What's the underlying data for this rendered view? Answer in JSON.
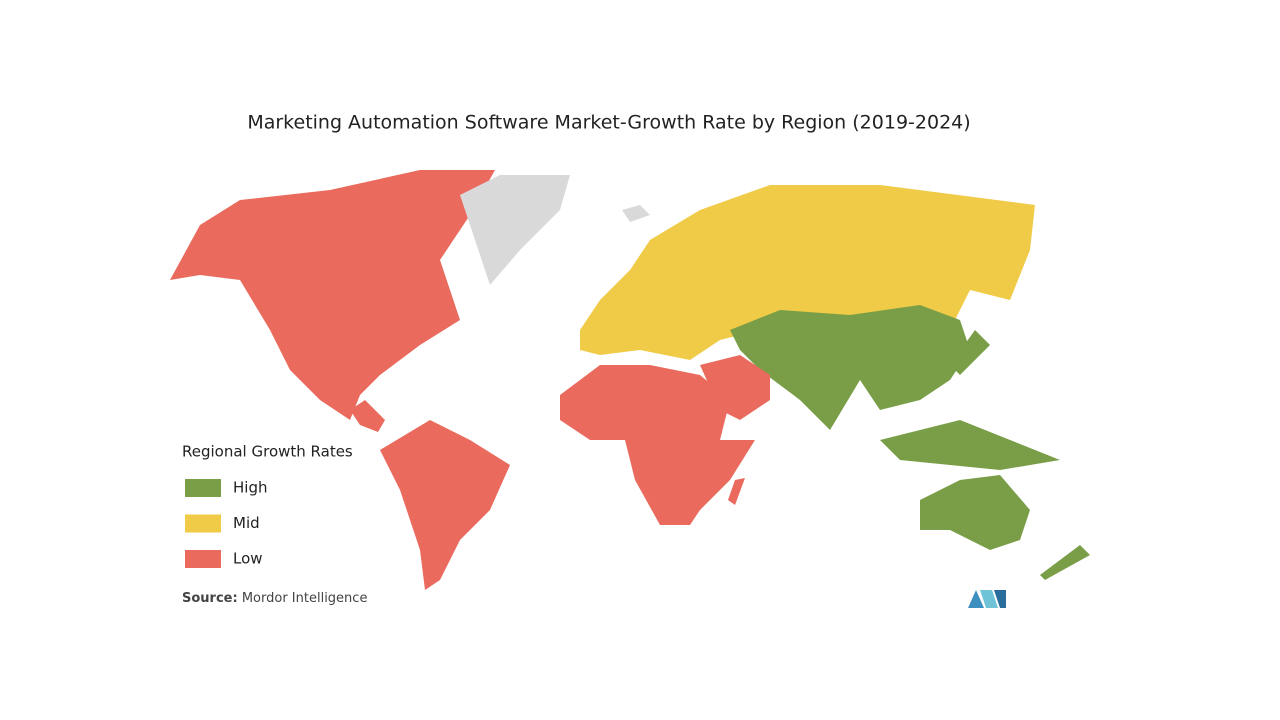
{
  "title": "Marketing Automation Software Market-Growth Rate by Region (2019-2024)",
  "legend": {
    "title": "Regional Growth Rates",
    "items": [
      {
        "label": "High",
        "color": "#7a9e47"
      },
      {
        "label": "Mid",
        "color": "#f0cb47"
      },
      {
        "label": "Low",
        "color": "#ea6b5e"
      }
    ]
  },
  "source": {
    "label": "Source:",
    "text": "Mordor Intelligence"
  },
  "no_data_color": "#d9d9d9"
}
